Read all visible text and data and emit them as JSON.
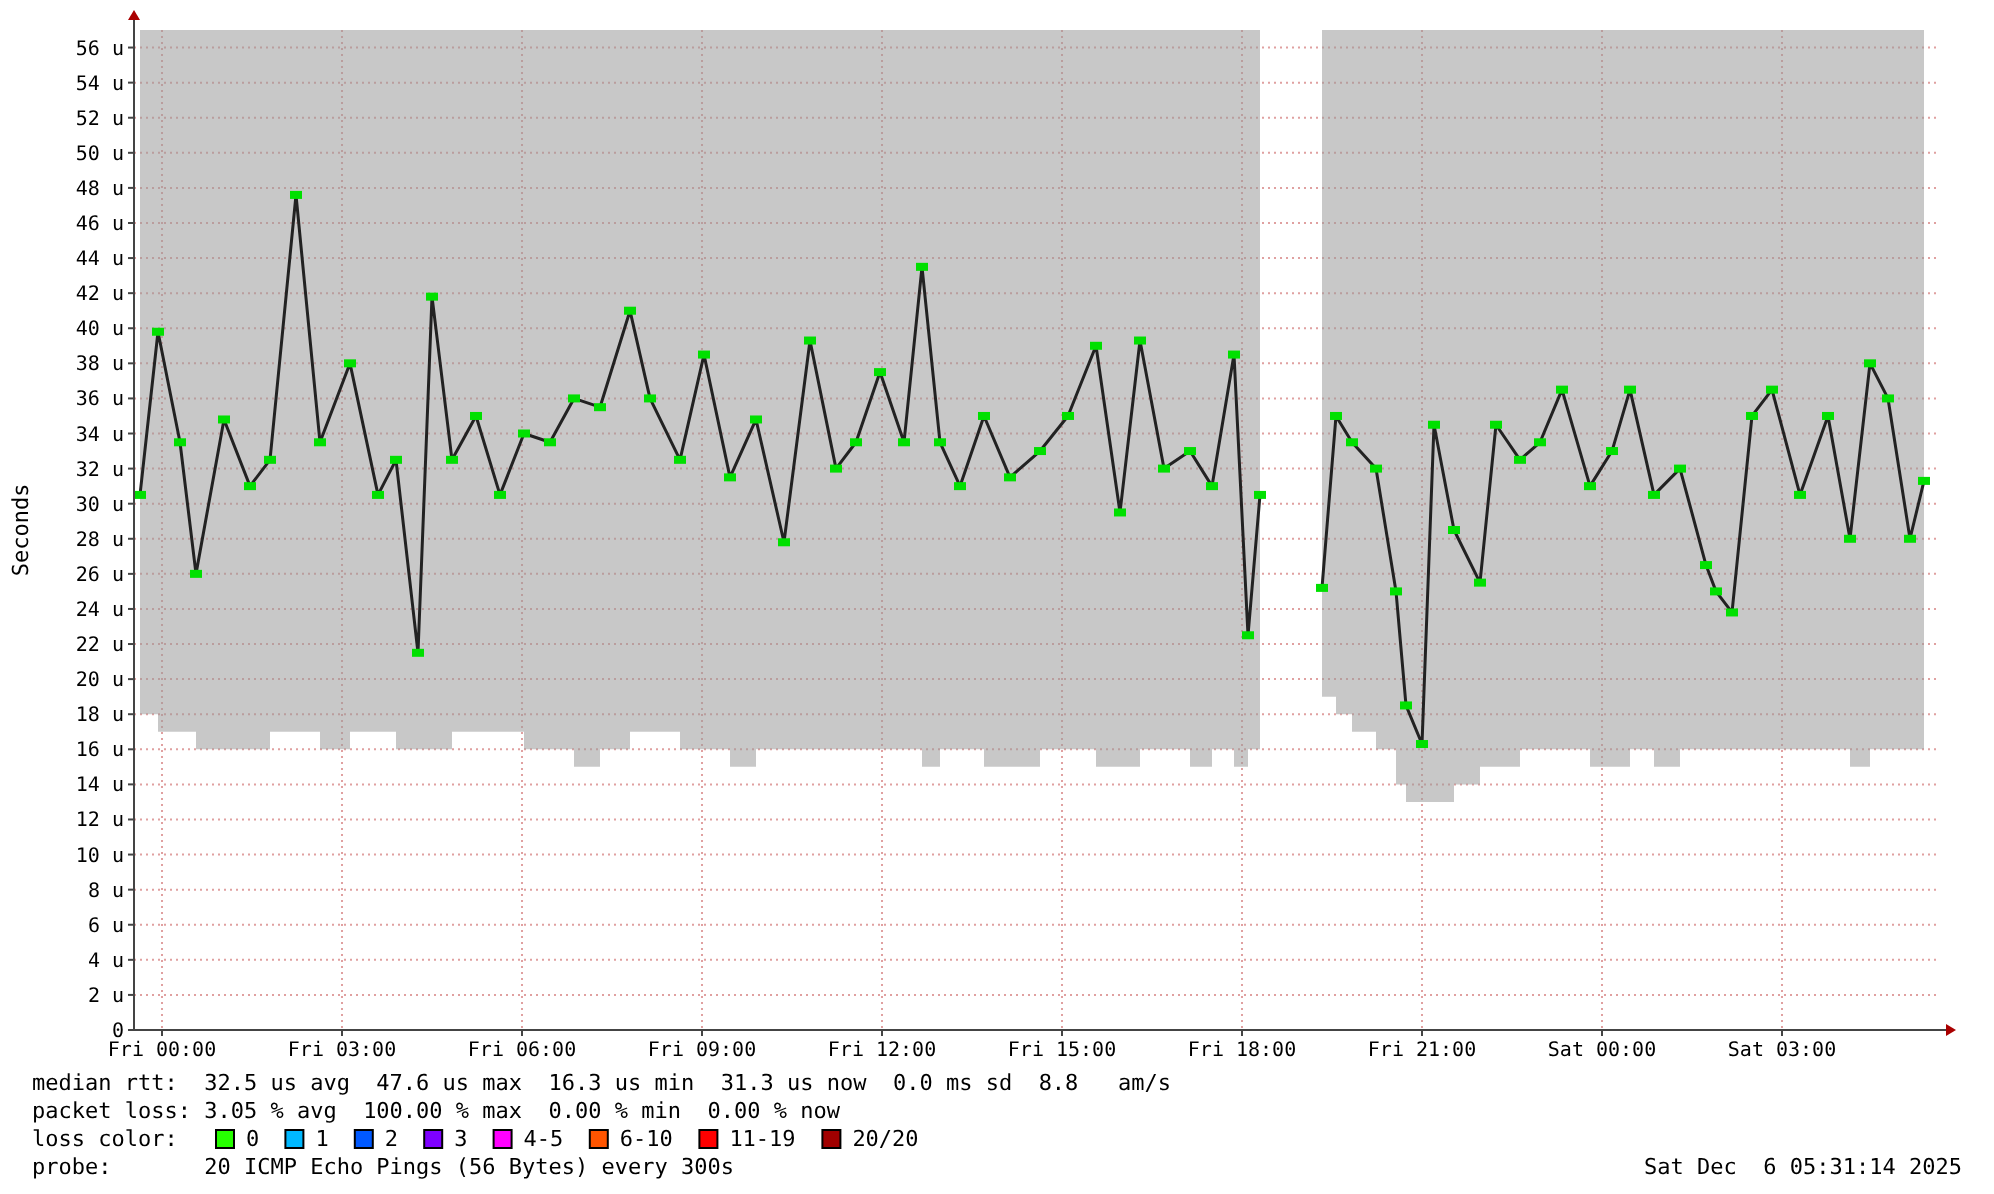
{
  "chart_data": {
    "type": "line",
    "ylabel": "Seconds",
    "xlim": [
      "2025-12-04T23:32",
      "2025-12-06T05:34"
    ],
    "ylim": [
      0,
      57
    ],
    "xticks": [
      {
        "value": "2025-12-05T00:00",
        "label": "Fri 00:00"
      },
      {
        "value": "2025-12-05T03:00",
        "label": "Fri 03:00"
      },
      {
        "value": "2025-12-05T06:00",
        "label": "Fri 06:00"
      },
      {
        "value": "2025-12-05T09:00",
        "label": "Fri 09:00"
      },
      {
        "value": "2025-12-05T12:00",
        "label": "Fri 12:00"
      },
      {
        "value": "2025-12-05T15:00",
        "label": "Fri 15:00"
      },
      {
        "value": "2025-12-05T18:00",
        "label": "Fri 18:00"
      },
      {
        "value": "2025-12-05T21:00",
        "label": "Fri 21:00"
      },
      {
        "value": "2025-12-06T00:00",
        "label": "Sat 00:00"
      },
      {
        "value": "2025-12-06T03:00",
        "label": "Sat 03:00"
      }
    ],
    "yticks": [
      0,
      {
        "value": 2,
        "label": "2 u"
      },
      {
        "value": 4,
        "label": "4 u"
      },
      {
        "value": 6,
        "label": "6 u"
      },
      {
        "value": 8,
        "label": "8 u"
      },
      {
        "value": 10,
        "label": "10 u"
      },
      {
        "value": 12,
        "label": "12 u"
      },
      {
        "value": 14,
        "label": "14 u"
      },
      {
        "value": 16,
        "label": "16 u"
      },
      {
        "value": 18,
        "label": "18 u"
      },
      {
        "value": 20,
        "label": "20 u"
      },
      {
        "value": 22,
        "label": "22 u"
      },
      {
        "value": 24,
        "label": "24 u"
      },
      {
        "value": 26,
        "label": "26 u"
      },
      {
        "value": 28,
        "label": "28 u"
      },
      {
        "value": 30,
        "label": "30 u"
      },
      {
        "value": 32,
        "label": "32 u"
      },
      {
        "value": 34,
        "label": "34 u"
      },
      {
        "value": 36,
        "label": "36 u"
      },
      {
        "value": 38,
        "label": "38 u"
      },
      {
        "value": 40,
        "label": "40 u"
      },
      {
        "value": 42,
        "label": "42 u"
      },
      {
        "value": 44,
        "label": "44 u"
      },
      {
        "value": 46,
        "label": "46 u"
      },
      {
        "value": 48,
        "label": "48 u"
      },
      {
        "value": 50,
        "label": "50 u"
      },
      {
        "value": 52,
        "label": "52 u"
      },
      {
        "value": 54,
        "label": "54 u"
      },
      {
        "value": 56,
        "label": "56 u"
      }
    ],
    "grid": true,
    "marker": "square",
    "line_style": "solid",
    "series": [
      {
        "color": "#00e000",
        "x": [
          "2025-12-04T23:38",
          "2025-12-04T23:56",
          "2025-12-05T00:18",
          "2025-12-05T00:34",
          "2025-12-05T01:02",
          "2025-12-05T01:28",
          "2025-12-05T01:48",
          "2025-12-05T02:14",
          "2025-12-05T02:38",
          "2025-12-05T03:08",
          "2025-12-05T03:36",
          "2025-12-05T03:54",
          "2025-12-05T04:16",
          "2025-12-05T04:30",
          "2025-12-05T04:50",
          "2025-12-05T05:14",
          "2025-12-05T05:38",
          "2025-12-05T06:02",
          "2025-12-05T06:28",
          "2025-12-05T06:52",
          "2025-12-05T07:18",
          "2025-12-05T07:48",
          "2025-12-05T08:08",
          "2025-12-05T08:38",
          "2025-12-05T09:02",
          "2025-12-05T09:28",
          "2025-12-05T09:54",
          "2025-12-05T10:22",
          "2025-12-05T10:48",
          "2025-12-05T11:14",
          "2025-12-05T11:34",
          "2025-12-05T11:58",
          "2025-12-05T12:22",
          "2025-12-05T12:40",
          "2025-12-05T12:58",
          "2025-12-05T13:18",
          "2025-12-05T13:42",
          "2025-12-05T14:08",
          "2025-12-05T14:38",
          "2025-12-05T15:06",
          "2025-12-05T15:34",
          "2025-12-05T15:58",
          "2025-12-05T16:18",
          "2025-12-05T16:42",
          "2025-12-05T17:08",
          "2025-12-05T17:30",
          "2025-12-05T17:52",
          "2025-12-05T18:06",
          "2025-12-05T18:18",
          "2025-12-05T18:48",
          "2025-12-05T19:20",
          "2025-12-05T19:34",
          "2025-12-05T19:50",
          "2025-12-05T20:14",
          "2025-12-05T20:34",
          "2025-12-05T20:44",
          "2025-12-05T21:00",
          "2025-12-05T21:12",
          "2025-12-05T21:32",
          "2025-12-05T21:58",
          "2025-12-05T22:14",
          "2025-12-05T22:38",
          "2025-12-05T22:58",
          "2025-12-05T23:20",
          "2025-12-05T23:48",
          "2025-12-06T00:10",
          "2025-12-06T00:28",
          "2025-12-06T00:52",
          "2025-12-06T01:18",
          "2025-12-06T01:44",
          "2025-12-06T01:54",
          "2025-12-06T02:10",
          "2025-12-06T02:30",
          "2025-12-06T02:50",
          "2025-12-06T03:18",
          "2025-12-06T03:46",
          "2025-12-06T04:08",
          "2025-12-06T04:28",
          "2025-12-06T04:46",
          "2025-12-06T05:08",
          "2025-12-06T05:22"
        ],
        "values": [
          30.5,
          39.8,
          33.5,
          26,
          34.8,
          31,
          32.5,
          47.6,
          33.5,
          38,
          30.5,
          32.5,
          21.5,
          41.8,
          32.5,
          35,
          30.5,
          34,
          33.5,
          36,
          35.5,
          41,
          36,
          32.5,
          38.5,
          31.5,
          34.8,
          27.8,
          39.3,
          32,
          33.5,
          37.5,
          33.5,
          43.5,
          33.5,
          31,
          35,
          31.5,
          33,
          35,
          39,
          29.5,
          39.3,
          32,
          33,
          31,
          38.5,
          22.5,
          30.5,
          null,
          25.2,
          35,
          33.5,
          32,
          25,
          18.5,
          16.3,
          34.5,
          28.5,
          25.5,
          34.5,
          32.5,
          33.5,
          36.5,
          31,
          33,
          36.5,
          30.5,
          32,
          26.5,
          25,
          23.8,
          35,
          36.5,
          30.5,
          35,
          28,
          38,
          36,
          28,
          31.3
        ],
        "lower": [
          18,
          17,
          17,
          16,
          16,
          16,
          17,
          17,
          16,
          17,
          17,
          16,
          16,
          16,
          17,
          17,
          17,
          16,
          16,
          15,
          16,
          17,
          17,
          16,
          16,
          15,
          16,
          16,
          16,
          16,
          16,
          16,
          16,
          15,
          16,
          16,
          15,
          15,
          16,
          16,
          15,
          15,
          16,
          16,
          15,
          16,
          15,
          16,
          18,
          null,
          19,
          18,
          17,
          16,
          14,
          13,
          13,
          13,
          14,
          15,
          15,
          16,
          16,
          16,
          15,
          15,
          16,
          15,
          16,
          16,
          16,
          16,
          16,
          16,
          16,
          16,
          15,
          16,
          16,
          16,
          17
        ],
        "upper": [
          57,
          57,
          57,
          57,
          57,
          57,
          57,
          57,
          57,
          57,
          57,
          57,
          57,
          57,
          57,
          57,
          57,
          57,
          57,
          57,
          57,
          57,
          57,
          57,
          57,
          57,
          57,
          57,
          57,
          57,
          57,
          57,
          57,
          57,
          57,
          57,
          57,
          57,
          57,
          57,
          57,
          57,
          57,
          57,
          57,
          57,
          57,
          57,
          57,
          null,
          57,
          57,
          57,
          57,
          57,
          57,
          57,
          57,
          57,
          57,
          57,
          57,
          57,
          57,
          57,
          57,
          57,
          57,
          57,
          57,
          57,
          57,
          57,
          57,
          57,
          57,
          57,
          57,
          57,
          57,
          57
        ]
      }
    ],
    "annotations": [
      "median rtt:  32.5 us avg  47.6 us max  16.3 us min  31.3 us now  0.0 ms sd  8.8   am/s",
      "packet loss: 3.05 % avg  100.00 % max  0.00 % min  0.00 % now",
      "loss color:",
      "0",
      "1",
      "2",
      "3",
      "4-5",
      "6-10",
      "11-19",
      "20/20",
      "probe:       20 ICMP Echo Pings (56 Bytes) every 300s",
      "Sat Dec  6 05:31:14 2025"
    ]
  }
}
